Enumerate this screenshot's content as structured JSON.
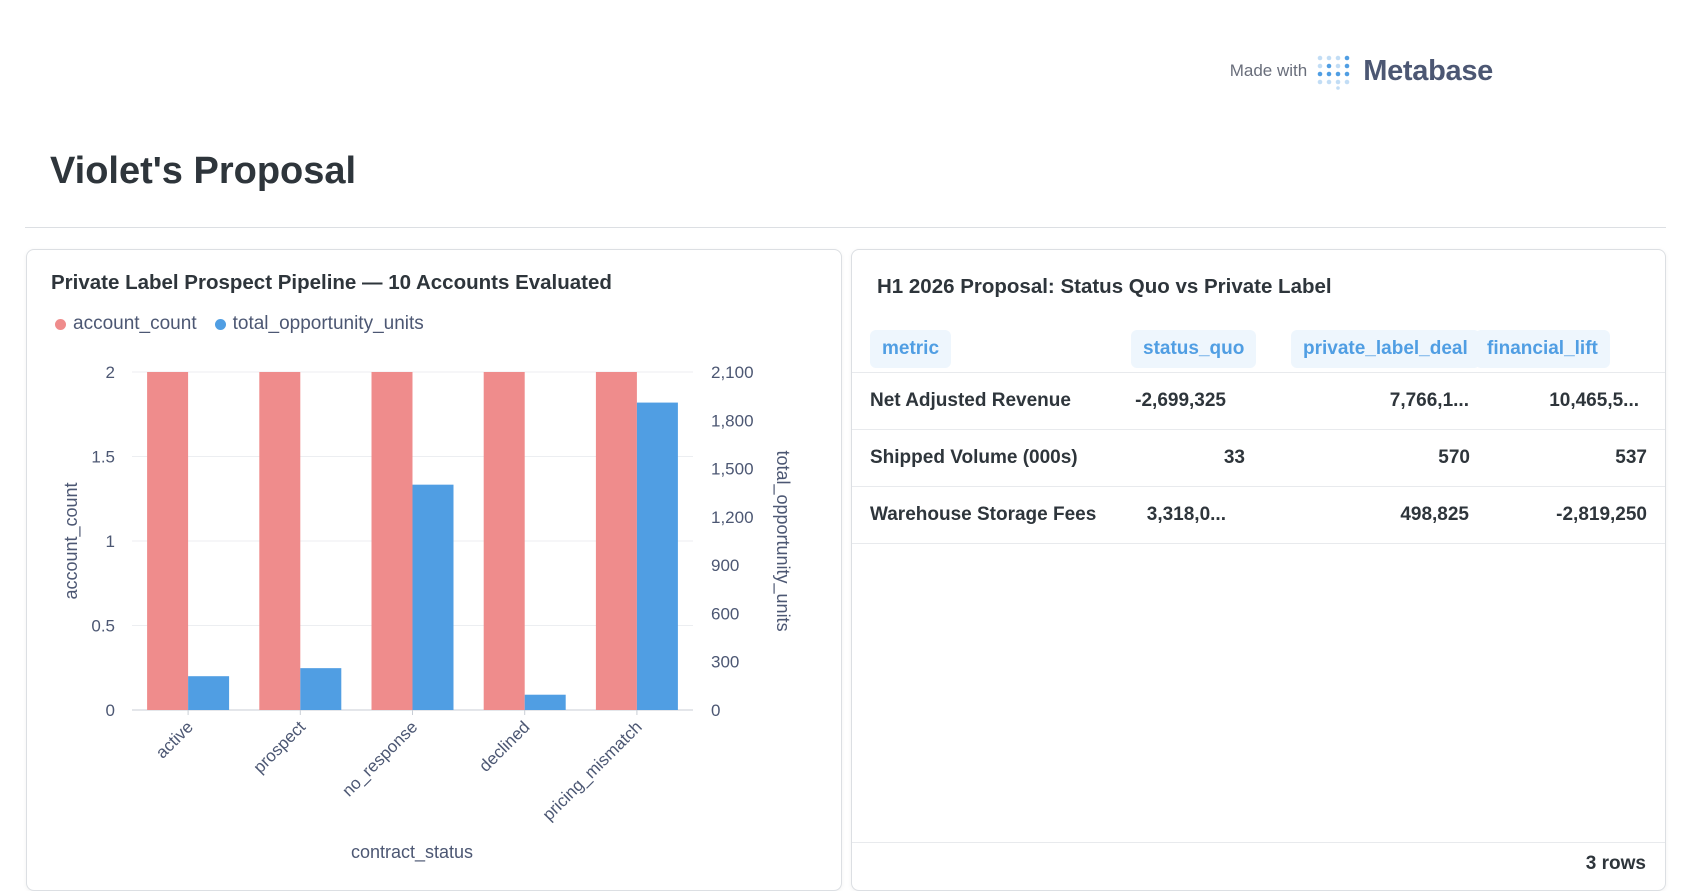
{
  "header": {
    "made_with": "Made with",
    "brand": "Metabase"
  },
  "dashboard": {
    "title": "Violet's Proposal"
  },
  "chart_card": {
    "title": "Private Label Prospect Pipeline — 10 Accounts Evaluated"
  },
  "chart_data": {
    "type": "bar",
    "categories": [
      "active",
      "prospect",
      "no_response",
      "declined",
      "pricing_mismatch"
    ],
    "series": [
      {
        "name": "account_count",
        "values": [
          2,
          2,
          2,
          2,
          2
        ],
        "axis": "left",
        "color": "#ef8c8c"
      },
      {
        "name": "total_opportunity_units",
        "values": [
          210,
          260,
          1400,
          95,
          1910
        ],
        "axis": "right",
        "color": "#509ee3"
      }
    ],
    "xlabel": "contract_status",
    "ylabel": "account_count",
    "y2label": "total_opportunity_units",
    "ylim": [
      0,
      2
    ],
    "y2lim": [
      0,
      2100
    ],
    "yticks": [
      "0",
      "0.5",
      "1",
      "1.5",
      "2"
    ],
    "y2ticks": [
      "0",
      "300",
      "600",
      "900",
      "1,200",
      "1,500",
      "1,800",
      "2,100"
    ],
    "legend_position": "top-left"
  },
  "table_card": {
    "title": "H1 2026 Proposal: Status Quo vs Private Label",
    "columns": [
      "metric",
      "status_quo",
      "private_label_deal",
      "financial_lift"
    ],
    "rows": [
      [
        "Net Adjusted Revenue",
        "-2,699,325",
        "7,766,1...",
        "10,465,5..."
      ],
      [
        "Shipped Volume (000s)",
        "33",
        "570",
        "537"
      ],
      [
        "Warehouse Storage Fees",
        "3,318,0...",
        "498,825",
        "-2,819,250"
      ]
    ],
    "row_count": "3 rows"
  },
  "colors": {
    "account_count": "#ef8c8c",
    "total_opportunity_units": "#509ee3",
    "brand": "#509ee3"
  }
}
